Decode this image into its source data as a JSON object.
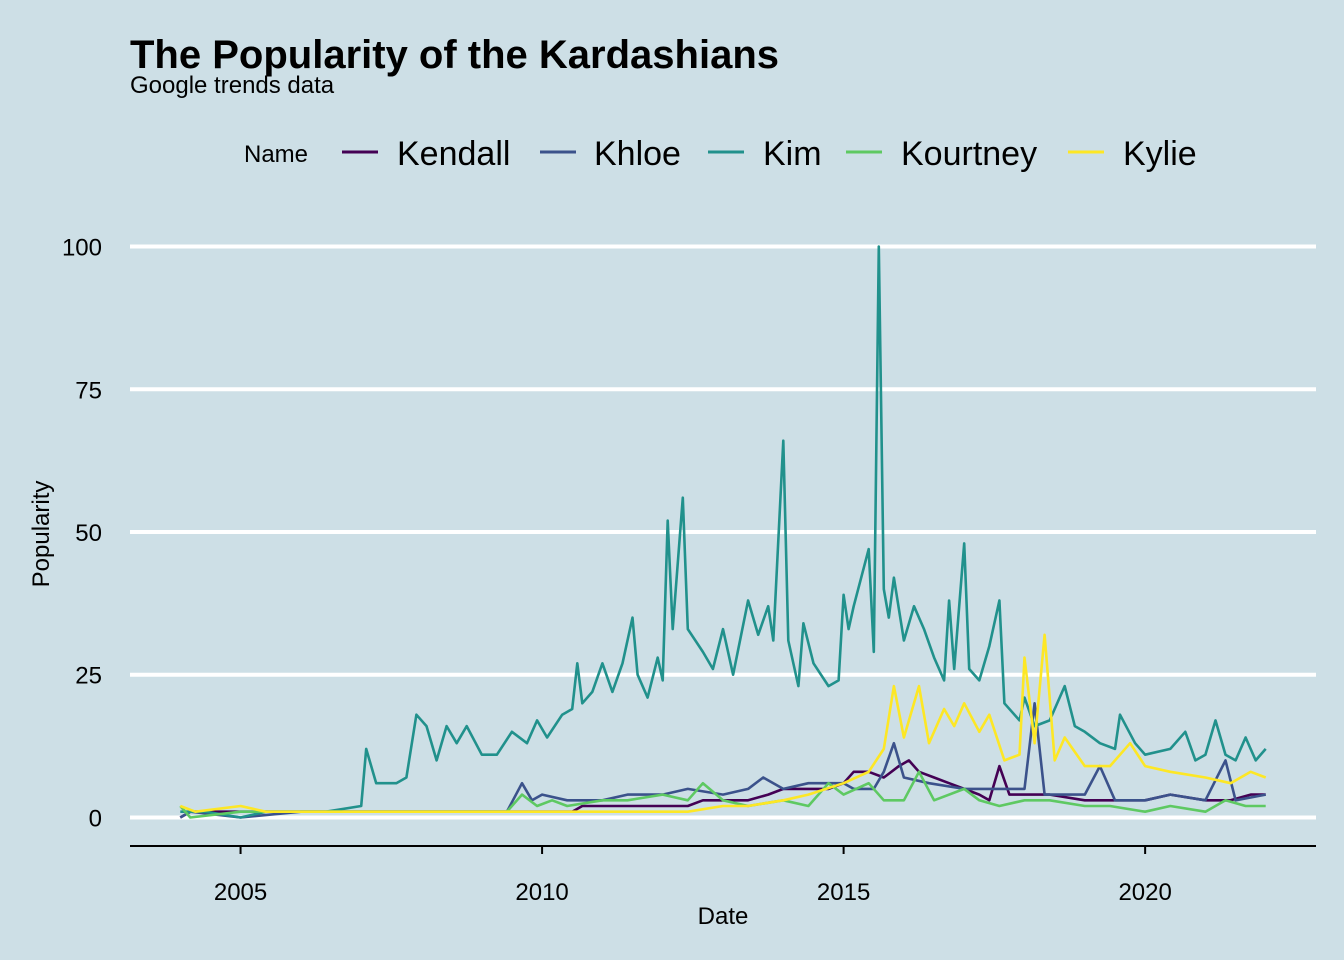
{
  "chart_data": {
    "type": "line",
    "title": "The Popularity of the Kardashians",
    "subtitle": "Google trends data",
    "xlabel": "Date",
    "ylabel": "Popularity",
    "legend_title": "Name",
    "legend_position": "top",
    "grid": "horizontal major lines only",
    "xlim": [
      "2003-03",
      "2022-11"
    ],
    "ylim": [
      -5,
      105
    ],
    "x_ticks": [
      "2005",
      "2010",
      "2015",
      "2020"
    ],
    "y_ticks": [
      0,
      25,
      50,
      75,
      100
    ],
    "x_start": "2004-01",
    "x_end": "2022-01",
    "series": [
      {
        "name": "Kendall",
        "color": "#440154",
        "points": [
          [
            "2004-01",
            0
          ],
          [
            "2004-03",
            1
          ],
          [
            "2005-01",
            1
          ],
          [
            "2006-01",
            1
          ],
          [
            "2007-01",
            1
          ],
          [
            "2008-01",
            1
          ],
          [
            "2009-01",
            1
          ],
          [
            "2010-01",
            1
          ],
          [
            "2010-07",
            1
          ],
          [
            "2010-09",
            2
          ],
          [
            "2011-06",
            2
          ],
          [
            "2012-01",
            2
          ],
          [
            "2012-06",
            2
          ],
          [
            "2012-09",
            3
          ],
          [
            "2013-01",
            3
          ],
          [
            "2013-06",
            3
          ],
          [
            "2013-10",
            4
          ],
          [
            "2014-01",
            5
          ],
          [
            "2014-05",
            5
          ],
          [
            "2014-10",
            5
          ],
          [
            "2015-01",
            6
          ],
          [
            "2015-03",
            8
          ],
          [
            "2015-06",
            8
          ],
          [
            "2015-09",
            7
          ],
          [
            "2015-12",
            9
          ],
          [
            "2016-02",
            10
          ],
          [
            "2016-04",
            8
          ],
          [
            "2016-07",
            7
          ],
          [
            "2016-10",
            6
          ],
          [
            "2017-01",
            5
          ],
          [
            "2017-04",
            4
          ],
          [
            "2017-06",
            3
          ],
          [
            "2017-08",
            9
          ],
          [
            "2017-10",
            4
          ],
          [
            "2018-01",
            4
          ],
          [
            "2018-06",
            4
          ],
          [
            "2019-01",
            3
          ],
          [
            "2019-06",
            3
          ],
          [
            "2020-01",
            3
          ],
          [
            "2020-06",
            4
          ],
          [
            "2021-01",
            3
          ],
          [
            "2021-06",
            3
          ],
          [
            "2021-10",
            4
          ],
          [
            "2022-01",
            4
          ]
        ]
      },
      {
        "name": "Khloe",
        "color": "#3b528b",
        "points": [
          [
            "2004-01",
            0
          ],
          [
            "2004-03",
            1
          ],
          [
            "2005-01",
            0
          ],
          [
            "2006-01",
            1
          ],
          [
            "2007-01",
            1
          ],
          [
            "2008-01",
            1
          ],
          [
            "2009-01",
            1
          ],
          [
            "2009-06",
            1
          ],
          [
            "2009-09",
            6
          ],
          [
            "2009-11",
            3
          ],
          [
            "2010-01",
            4
          ],
          [
            "2010-06",
            3
          ],
          [
            "2011-01",
            3
          ],
          [
            "2011-06",
            4
          ],
          [
            "2012-01",
            4
          ],
          [
            "2012-06",
            5
          ],
          [
            "2013-01",
            4
          ],
          [
            "2013-06",
            5
          ],
          [
            "2013-09",
            7
          ],
          [
            "2014-01",
            5
          ],
          [
            "2014-06",
            6
          ],
          [
            "2015-01",
            6
          ],
          [
            "2015-03",
            5
          ],
          [
            "2015-07",
            5
          ],
          [
            "2015-09",
            8
          ],
          [
            "2015-11",
            13
          ],
          [
            "2016-01",
            7
          ],
          [
            "2016-06",
            6
          ],
          [
            "2017-01",
            5
          ],
          [
            "2017-06",
            5
          ],
          [
            "2018-01",
            5
          ],
          [
            "2018-03",
            20
          ],
          [
            "2018-05",
            4
          ],
          [
            "2019-01",
            4
          ],
          [
            "2019-04",
            9
          ],
          [
            "2019-07",
            3
          ],
          [
            "2020-01",
            3
          ],
          [
            "2020-06",
            4
          ],
          [
            "2021-01",
            3
          ],
          [
            "2021-05",
            10
          ],
          [
            "2021-07",
            3
          ],
          [
            "2022-01",
            4
          ]
        ]
      },
      {
        "name": "Kim",
        "color": "#21918c",
        "points": [
          [
            "2004-01",
            1
          ],
          [
            "2004-06",
            1
          ],
          [
            "2005-01",
            0
          ],
          [
            "2005-06",
            1
          ],
          [
            "2006-01",
            1
          ],
          [
            "2006-06",
            1
          ],
          [
            "2007-01",
            2
          ],
          [
            "2007-02",
            12
          ],
          [
            "2007-04",
            6
          ],
          [
            "2007-08",
            6
          ],
          [
            "2007-10",
            7
          ],
          [
            "2007-12",
            18
          ],
          [
            "2008-02",
            16
          ],
          [
            "2008-04",
            10
          ],
          [
            "2008-06",
            16
          ],
          [
            "2008-08",
            13
          ],
          [
            "2008-10",
            16
          ],
          [
            "2009-01",
            11
          ],
          [
            "2009-04",
            11
          ],
          [
            "2009-07",
            15
          ],
          [
            "2009-10",
            13
          ],
          [
            "2009-12",
            17
          ],
          [
            "2010-02",
            14
          ],
          [
            "2010-05",
            18
          ],
          [
            "2010-07",
            19
          ],
          [
            "2010-08",
            27
          ],
          [
            "2010-09",
            20
          ],
          [
            "2010-11",
            22
          ],
          [
            "2011-01",
            27
          ],
          [
            "2011-03",
            22
          ],
          [
            "2011-05",
            27
          ],
          [
            "2011-07",
            35
          ],
          [
            "2011-08",
            25
          ],
          [
            "2011-10",
            21
          ],
          [
            "2011-12",
            28
          ],
          [
            "2012-01",
            24
          ],
          [
            "2012-02",
            52
          ],
          [
            "2012-03",
            33
          ],
          [
            "2012-05",
            56
          ],
          [
            "2012-06",
            33
          ],
          [
            "2012-09",
            29
          ],
          [
            "2012-11",
            26
          ],
          [
            "2013-01",
            33
          ],
          [
            "2013-03",
            25
          ],
          [
            "2013-06",
            38
          ],
          [
            "2013-08",
            32
          ],
          [
            "2013-10",
            37
          ],
          [
            "2013-11",
            31
          ],
          [
            "2014-01",
            66
          ],
          [
            "2014-02",
            31
          ],
          [
            "2014-04",
            23
          ],
          [
            "2014-05",
            34
          ],
          [
            "2014-07",
            27
          ],
          [
            "2014-10",
            23
          ],
          [
            "2014-12",
            24
          ],
          [
            "2015-01",
            39
          ],
          [
            "2015-02",
            33
          ],
          [
            "2015-03",
            37
          ],
          [
            "2015-06",
            47
          ],
          [
            "2015-07",
            29
          ],
          [
            "2015-08",
            100
          ],
          [
            "2015-09",
            40
          ],
          [
            "2015-10",
            35
          ],
          [
            "2015-11",
            42
          ],
          [
            "2016-01",
            31
          ],
          [
            "2016-03",
            37
          ],
          [
            "2016-05",
            33
          ],
          [
            "2016-07",
            28
          ],
          [
            "2016-09",
            24
          ],
          [
            "2016-10",
            38
          ],
          [
            "2016-11",
            26
          ],
          [
            "2017-01",
            48
          ],
          [
            "2017-02",
            26
          ],
          [
            "2017-04",
            24
          ],
          [
            "2017-06",
            30
          ],
          [
            "2017-08",
            38
          ],
          [
            "2017-09",
            20
          ],
          [
            "2017-12",
            17
          ],
          [
            "2018-01",
            21
          ],
          [
            "2018-03",
            16
          ],
          [
            "2018-06",
            17
          ],
          [
            "2018-09",
            23
          ],
          [
            "2018-11",
            16
          ],
          [
            "2019-01",
            15
          ],
          [
            "2019-04",
            13
          ],
          [
            "2019-07",
            12
          ],
          [
            "2019-08",
            18
          ],
          [
            "2019-11",
            13
          ],
          [
            "2020-01",
            11
          ],
          [
            "2020-06",
            12
          ],
          [
            "2020-09",
            15
          ],
          [
            "2020-11",
            10
          ],
          [
            "2021-01",
            11
          ],
          [
            "2021-03",
            17
          ],
          [
            "2021-05",
            11
          ],
          [
            "2021-07",
            10
          ],
          [
            "2021-09",
            14
          ],
          [
            "2021-11",
            10
          ],
          [
            "2022-01",
            12
          ]
        ]
      },
      {
        "name": "Kourtney",
        "color": "#5ec962",
        "points": [
          [
            "2004-01",
            2
          ],
          [
            "2004-03",
            0
          ],
          [
            "2005-01",
            1
          ],
          [
            "2006-01",
            1
          ],
          [
            "2007-01",
            1
          ],
          [
            "2008-01",
            1
          ],
          [
            "2009-01",
            1
          ],
          [
            "2009-06",
            1
          ],
          [
            "2009-09",
            4
          ],
          [
            "2009-12",
            2
          ],
          [
            "2010-03",
            3
          ],
          [
            "2010-06",
            2
          ],
          [
            "2011-01",
            3
          ],
          [
            "2011-06",
            3
          ],
          [
            "2012-01",
            4
          ],
          [
            "2012-06",
            3
          ],
          [
            "2012-09",
            6
          ],
          [
            "2013-01",
            3
          ],
          [
            "2013-06",
            2
          ],
          [
            "2014-01",
            3
          ],
          [
            "2014-06",
            2
          ],
          [
            "2014-10",
            6
          ],
          [
            "2015-01",
            4
          ],
          [
            "2015-06",
            6
          ],
          [
            "2015-09",
            3
          ],
          [
            "2016-01",
            3
          ],
          [
            "2016-04",
            8
          ],
          [
            "2016-07",
            3
          ],
          [
            "2017-01",
            5
          ],
          [
            "2017-04",
            3
          ],
          [
            "2017-08",
            2
          ],
          [
            "2018-01",
            3
          ],
          [
            "2018-06",
            3
          ],
          [
            "2019-01",
            2
          ],
          [
            "2019-06",
            2
          ],
          [
            "2020-01",
            1
          ],
          [
            "2020-06",
            2
          ],
          [
            "2021-01",
            1
          ],
          [
            "2021-05",
            3
          ],
          [
            "2021-09",
            2
          ],
          [
            "2022-01",
            2
          ]
        ]
      },
      {
        "name": "Kylie",
        "color": "#fde725",
        "points": [
          [
            "2004-01",
            2
          ],
          [
            "2004-04",
            1
          ],
          [
            "2005-01",
            2
          ],
          [
            "2005-06",
            1
          ],
          [
            "2006-01",
            1
          ],
          [
            "2007-01",
            1
          ],
          [
            "2008-01",
            1
          ],
          [
            "2009-01",
            1
          ],
          [
            "2010-01",
            1
          ],
          [
            "2011-01",
            1
          ],
          [
            "2011-06",
            1
          ],
          [
            "2012-01",
            1
          ],
          [
            "2012-06",
            1
          ],
          [
            "2013-01",
            2
          ],
          [
            "2013-06",
            2
          ],
          [
            "2014-01",
            3
          ],
          [
            "2014-06",
            4
          ],
          [
            "2015-01",
            6
          ],
          [
            "2015-06",
            8
          ],
          [
            "2015-09",
            12
          ],
          [
            "2015-11",
            23
          ],
          [
            "2016-01",
            14
          ],
          [
            "2016-04",
            23
          ],
          [
            "2016-06",
            13
          ],
          [
            "2016-09",
            19
          ],
          [
            "2016-11",
            16
          ],
          [
            "2017-01",
            20
          ],
          [
            "2017-04",
            15
          ],
          [
            "2017-06",
            18
          ],
          [
            "2017-09",
            10
          ],
          [
            "2017-12",
            11
          ],
          [
            "2018-01",
            28
          ],
          [
            "2018-03",
            13
          ],
          [
            "2018-05",
            32
          ],
          [
            "2018-07",
            10
          ],
          [
            "2018-09",
            14
          ],
          [
            "2019-01",
            9
          ],
          [
            "2019-06",
            9
          ],
          [
            "2019-10",
            13
          ],
          [
            "2020-01",
            9
          ],
          [
            "2020-06",
            8
          ],
          [
            "2021-01",
            7
          ],
          [
            "2021-06",
            6
          ],
          [
            "2021-10",
            8
          ],
          [
            "2022-01",
            7
          ]
        ]
      }
    ]
  }
}
